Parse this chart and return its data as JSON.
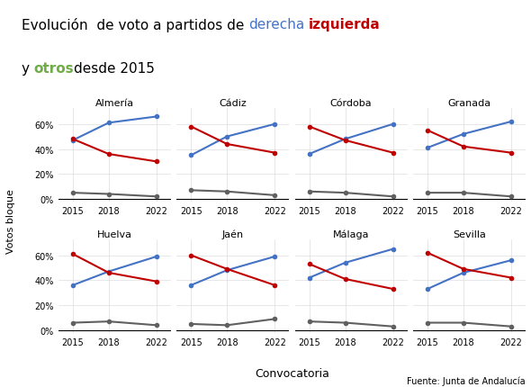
{
  "years": [
    2015,
    2018,
    2022
  ],
  "provinces": [
    "Almería",
    "Cádiz",
    "Córdoba",
    "Granada",
    "Huelva",
    "Jaén",
    "Málaga",
    "Sevilla"
  ],
  "data": {
    "Almería": {
      "derecha": [
        0.47,
        0.61,
        0.66
      ],
      "izquierda": [
        0.48,
        0.36,
        0.3
      ],
      "otros": [
        0.05,
        0.04,
        0.02
      ]
    },
    "Cádiz": {
      "derecha": [
        0.35,
        0.5,
        0.6
      ],
      "izquierda": [
        0.58,
        0.44,
        0.37
      ],
      "otros": [
        0.07,
        0.06,
        0.03
      ]
    },
    "Córdoba": {
      "derecha": [
        0.36,
        0.48,
        0.6
      ],
      "izquierda": [
        0.58,
        0.47,
        0.37
      ],
      "otros": [
        0.06,
        0.05,
        0.02
      ]
    },
    "Granada": {
      "derecha": [
        0.41,
        0.52,
        0.62
      ],
      "izquierda": [
        0.55,
        0.42,
        0.37
      ],
      "otros": [
        0.05,
        0.05,
        0.02
      ]
    },
    "Huelva": {
      "derecha": [
        0.36,
        0.47,
        0.59
      ],
      "izquierda": [
        0.61,
        0.46,
        0.39
      ],
      "otros": [
        0.06,
        0.07,
        0.04
      ]
    },
    "Jaén": {
      "derecha": [
        0.36,
        0.48,
        0.59
      ],
      "izquierda": [
        0.6,
        0.49,
        0.36
      ],
      "otros": [
        0.05,
        0.04,
        0.09
      ]
    },
    "Málaga": {
      "derecha": [
        0.42,
        0.54,
        0.65
      ],
      "izquierda": [
        0.53,
        0.41,
        0.33
      ],
      "otros": [
        0.07,
        0.06,
        0.03
      ]
    },
    "Sevilla": {
      "derecha": [
        0.33,
        0.46,
        0.56
      ],
      "izquierda": [
        0.62,
        0.49,
        0.42
      ],
      "otros": [
        0.06,
        0.06,
        0.03
      ]
    }
  },
  "colors": {
    "derecha": "#4472C4",
    "izquierda": "#C00000",
    "otros": "#606060"
  },
  "title_line1": [
    {
      "text": "Evolución  de voto a partidos de ",
      "color": "black",
      "bold": false
    },
    {
      "text": "derecha",
      "color": "#4472C4",
      "bold": false
    },
    {
      "text": " ",
      "color": "black",
      "bold": false
    },
    {
      "text": "izquierda",
      "color": "#C00000",
      "bold": true
    }
  ],
  "title_line2": [
    {
      "text": "y ",
      "color": "black",
      "bold": false
    },
    {
      "text": "otros",
      "color": "#70AD47",
      "bold": true
    },
    {
      "text": "desde 2015",
      "color": "black",
      "bold": false
    }
  ],
  "ylabel": "Votos bloque",
  "xlabel": "Convocatoria",
  "source": "Fuente: Junta de Andalucía",
  "background_color": "#FFFFFF",
  "grid_color": "#DDDDDD",
  "title_fontsize": 11,
  "subplot_title_fontsize": 8,
  "tick_fontsize": 7,
  "ylabel_fontsize": 8,
  "xlabel_fontsize": 9,
  "source_fontsize": 7
}
